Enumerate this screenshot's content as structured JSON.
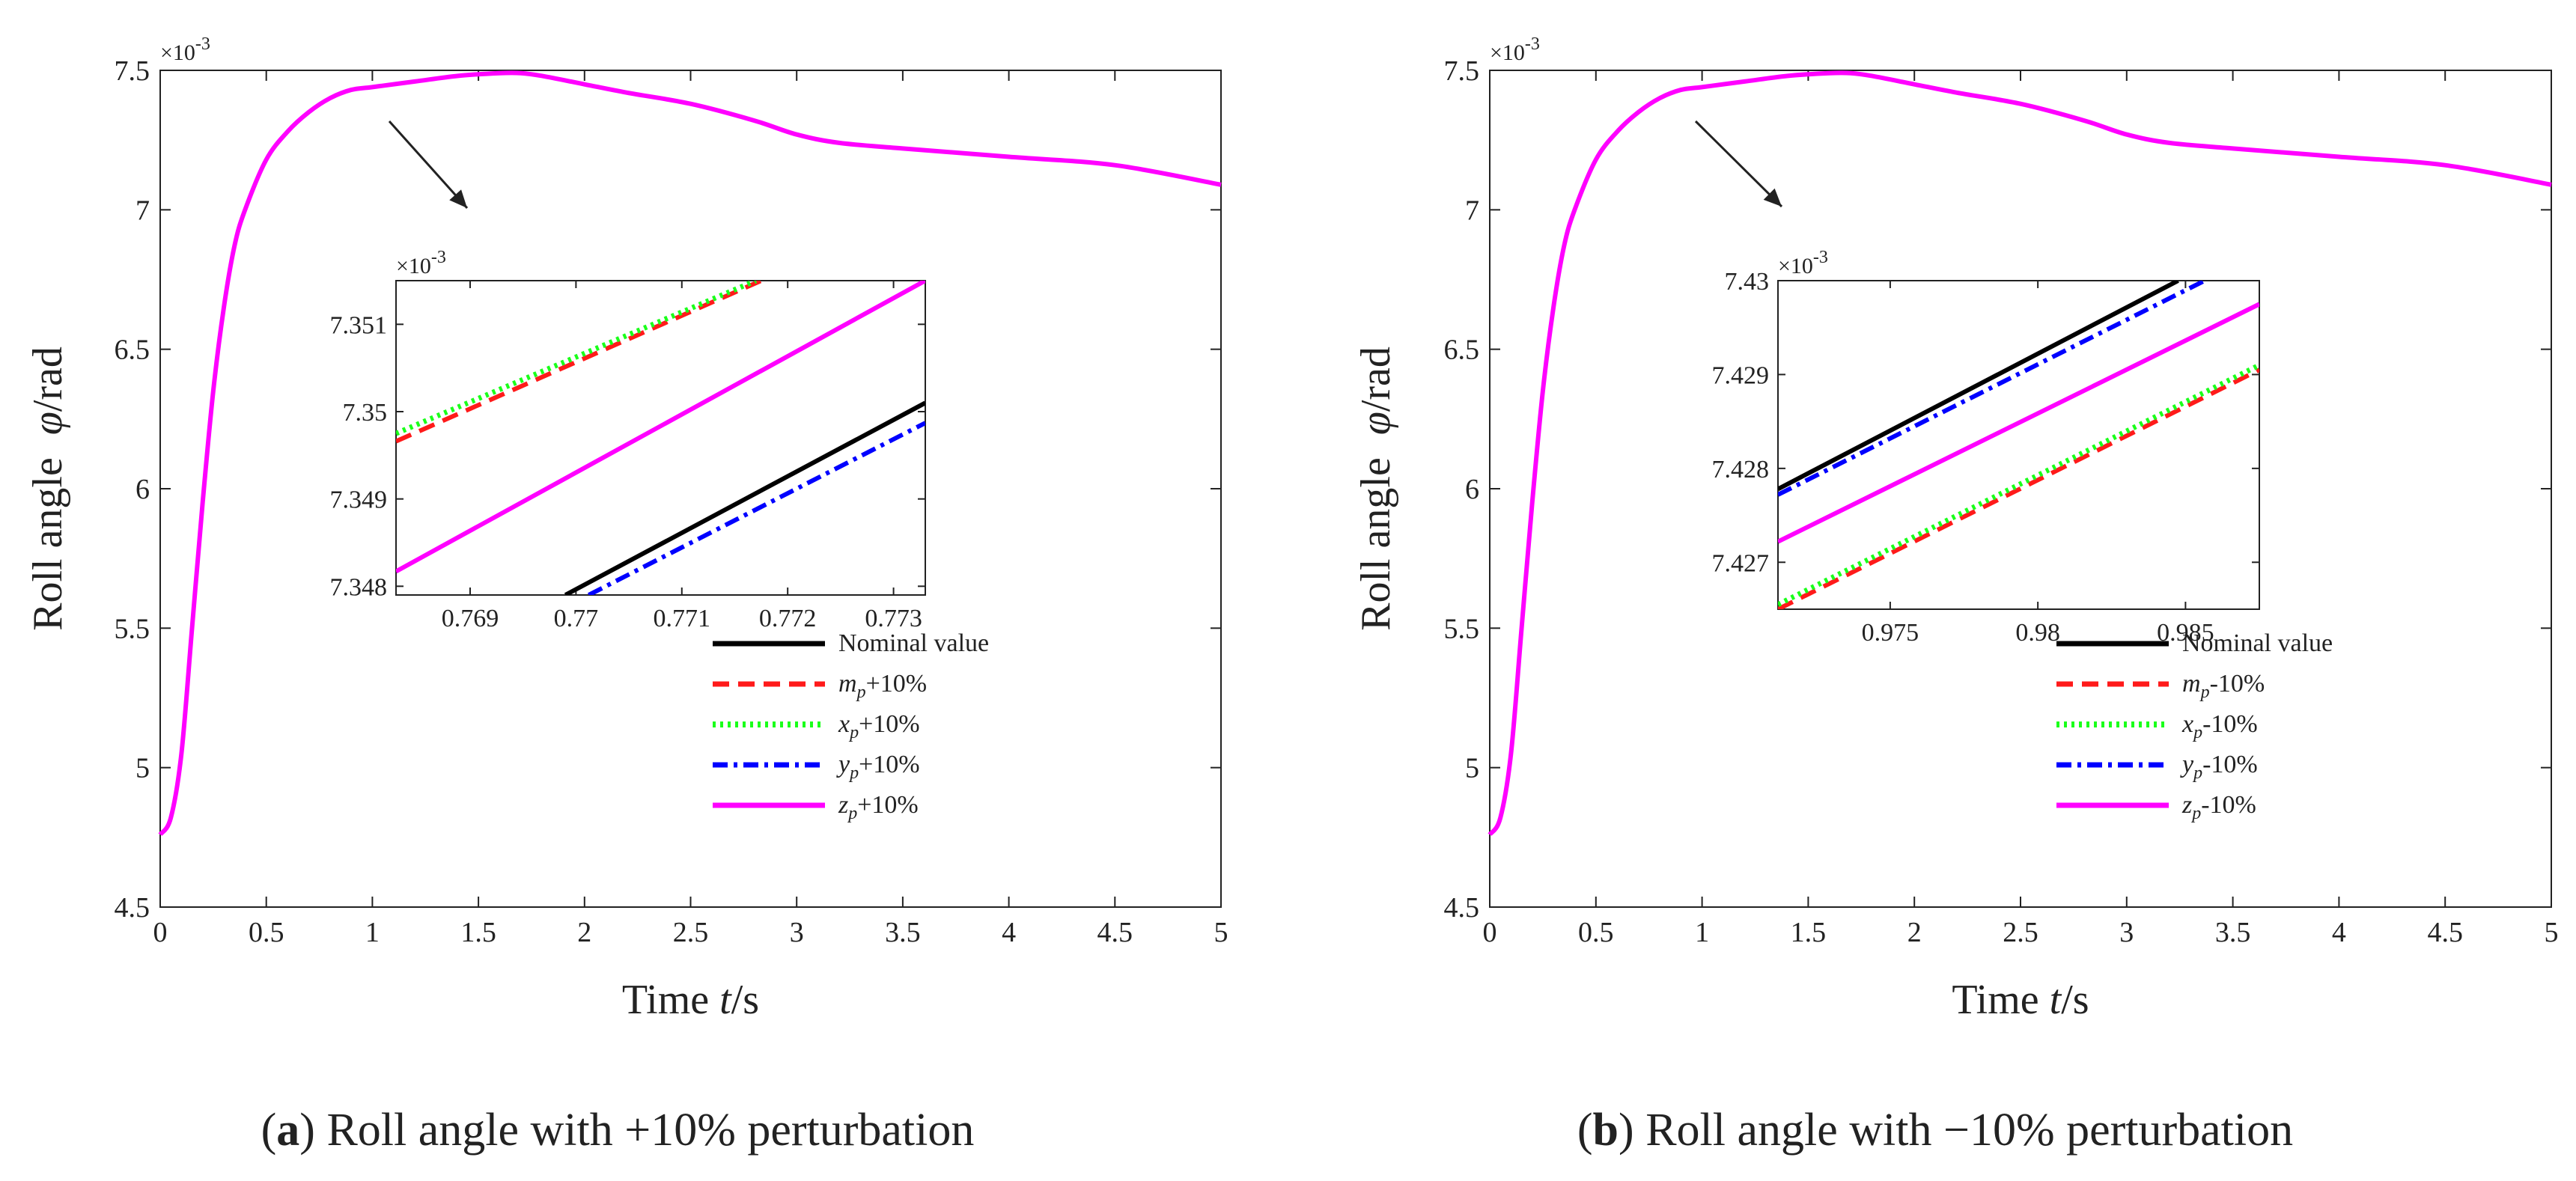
{
  "chart_data": [
    {
      "type": "line",
      "panel": "a",
      "caption_bold": "a",
      "caption_text": " Roll angle with +10% perturbation",
      "xlabel_main": "Time ",
      "xlabel_var": "t",
      "xlabel_unit": "/s",
      "ylabel_main": "Roll angle ",
      "ylabel_var": "φ",
      "ylabel_unit": "/rad",
      "y_multiplier": "×10",
      "y_multiplier_exp": "-3",
      "xlim": [
        0,
        5
      ],
      "ylim": [
        4.5,
        7.5
      ],
      "x_ticks": [
        "0",
        "0.5",
        "1",
        "1.5",
        "2",
        "2.5",
        "3",
        "3.5",
        "4",
        "4.5",
        "5"
      ],
      "y_ticks": [
        "4.5",
        "5",
        "5.5",
        "6",
        "6.5",
        "7",
        "7.5"
      ],
      "main_curve": {
        "x": [
          0,
          0.05,
          0.1,
          0.15,
          0.2,
          0.25,
          0.3,
          0.35,
          0.4,
          0.5,
          0.6,
          0.7,
          0.8,
          0.9,
          1.0,
          1.2,
          1.4,
          1.6,
          1.7,
          1.8,
          2.0,
          2.2,
          2.5,
          2.8,
          3.0,
          3.2,
          3.5,
          4.0,
          4.5,
          5.0
        ],
        "y": [
          4.76,
          4.82,
          5.05,
          5.5,
          5.95,
          6.35,
          6.65,
          6.87,
          7.0,
          7.18,
          7.28,
          7.35,
          7.4,
          7.43,
          7.44,
          7.46,
          7.48,
          7.49,
          7.49,
          7.48,
          7.45,
          7.42,
          7.38,
          7.32,
          7.27,
          7.24,
          7.22,
          7.19,
          7.16,
          7.09
        ]
      },
      "inset": {
        "xlim": [
          0.7683,
          0.7733
        ],
        "ylim": [
          7.3479,
          7.3515
        ],
        "x_ticks": [
          "0.769",
          "0.77",
          "0.771",
          "0.772",
          "0.773"
        ],
        "y_ticks": [
          "7.348",
          "7.349",
          "7.35",
          "7.351"
        ],
        "y_multiplier": "×10",
        "y_multiplier_exp": "-3",
        "series": [
          {
            "key": "nominal",
            "x": [
              0.7699,
              0.7733
            ],
            "y": [
              7.3479,
              7.3501
            ]
          },
          {
            "key": "mp",
            "x": [
              0.7683,
              0.77175
            ],
            "y": [
              7.34966,
              7.3515
            ]
          },
          {
            "key": "xp",
            "x": [
              0.7683,
              0.7717
            ],
            "y": [
              7.34975,
              7.3515
            ]
          },
          {
            "key": "yp",
            "x": [
              0.77012,
              0.7733
            ],
            "y": [
              7.3479,
              7.34987
            ]
          },
          {
            "key": "zp",
            "x": [
              0.7683,
              0.7733
            ],
            "y": [
              7.34817,
              7.3515
            ]
          }
        ]
      },
      "legend": [
        {
          "key": "nominal",
          "var": "",
          "sub": "",
          "suffix": "Nominal value",
          "color": "#000000",
          "dash": "solid"
        },
        {
          "key": "mp",
          "var": "m",
          "sub": "p",
          "suffix": "+10%",
          "color": "#ff1a1a",
          "dash": "dashed"
        },
        {
          "key": "xp",
          "var": "x",
          "sub": "p",
          "suffix": "+10%",
          "color": "#1aff1a",
          "dash": "dotted"
        },
        {
          "key": "yp",
          "var": "y",
          "sub": "p",
          "suffix": "+10%",
          "color": "#0000ff",
          "dash": "dashdot"
        },
        {
          "key": "zp",
          "var": "z",
          "sub": "p",
          "suffix": "+10%",
          "color": "#ff00ff",
          "dash": "solid"
        }
      ]
    },
    {
      "type": "line",
      "panel": "b",
      "caption_bold": "b",
      "caption_text": " Roll angle with −10% perturbation",
      "xlabel_main": "Time ",
      "xlabel_var": "t",
      "xlabel_unit": "/s",
      "ylabel_main": "Roll angle ",
      "ylabel_var": "φ",
      "ylabel_unit": "/rad",
      "y_multiplier": "×10",
      "y_multiplier_exp": "-3",
      "xlim": [
        0,
        5
      ],
      "ylim": [
        4.5,
        7.5
      ],
      "x_ticks": [
        "0",
        "0.5",
        "1",
        "1.5",
        "2",
        "2.5",
        "3",
        "3.5",
        "4",
        "4.5",
        "5"
      ],
      "y_ticks": [
        "4.5",
        "5",
        "5.5",
        "6",
        "6.5",
        "7",
        "7.5"
      ],
      "main_curve": {
        "x": [
          0,
          0.05,
          0.1,
          0.15,
          0.2,
          0.25,
          0.3,
          0.35,
          0.4,
          0.5,
          0.6,
          0.7,
          0.8,
          0.9,
          1.0,
          1.2,
          1.4,
          1.6,
          1.7,
          1.8,
          2.0,
          2.2,
          2.5,
          2.8,
          3.0,
          3.2,
          3.5,
          4.0,
          4.5,
          5.0
        ],
        "y": [
          4.76,
          4.82,
          5.05,
          5.5,
          5.95,
          6.35,
          6.65,
          6.87,
          7.0,
          7.18,
          7.28,
          7.35,
          7.4,
          7.43,
          7.44,
          7.46,
          7.48,
          7.49,
          7.49,
          7.48,
          7.45,
          7.42,
          7.38,
          7.32,
          7.27,
          7.24,
          7.22,
          7.19,
          7.16,
          7.09
        ]
      },
      "inset": {
        "xlim": [
          0.9712,
          0.9875
        ],
        "ylim": [
          7.4265,
          7.43
        ],
        "x_ticks": [
          "0.975",
          "0.98",
          "0.985"
        ],
        "y_ticks": [
          "7.427",
          "7.428",
          "7.429",
          "7.43"
        ],
        "y_multiplier": "×10",
        "y_multiplier_exp": "-3",
        "series": [
          {
            "key": "nominal",
            "x": [
              0.9712,
              0.98475
            ],
            "y": [
              7.42778,
              7.43
            ]
          },
          {
            "key": "mp",
            "x": [
              0.9712,
              0.9875
            ],
            "y": [
              7.4265,
              7.42905
            ]
          },
          {
            "key": "xp",
            "x": [
              0.9712,
              0.9875
            ],
            "y": [
              7.42655,
              7.4291
            ]
          },
          {
            "key": "yp",
            "x": [
              0.9712,
              0.98565
            ],
            "y": [
              7.42772,
              7.43
            ]
          },
          {
            "key": "zp",
            "x": [
              0.9712,
              0.9875
            ],
            "y": [
              7.42722,
              7.42975
            ]
          }
        ]
      },
      "legend": [
        {
          "key": "nominal",
          "var": "",
          "sub": "",
          "suffix": "Nominal value",
          "color": "#000000",
          "dash": "solid"
        },
        {
          "key": "mp",
          "var": "m",
          "sub": "p",
          "suffix": "-10%",
          "color": "#ff1a1a",
          "dash": "dashed"
        },
        {
          "key": "xp",
          "var": "x",
          "sub": "p",
          "suffix": "-10%",
          "color": "#1aff1a",
          "dash": "dotted"
        },
        {
          "key": "yp",
          "var": "y",
          "sub": "p",
          "suffix": "-10%",
          "color": "#0000ff",
          "dash": "dashdot"
        },
        {
          "key": "zp",
          "var": "z",
          "sub": "p",
          "suffix": "-10%",
          "color": "#ff00ff",
          "dash": "solid"
        }
      ]
    }
  ]
}
